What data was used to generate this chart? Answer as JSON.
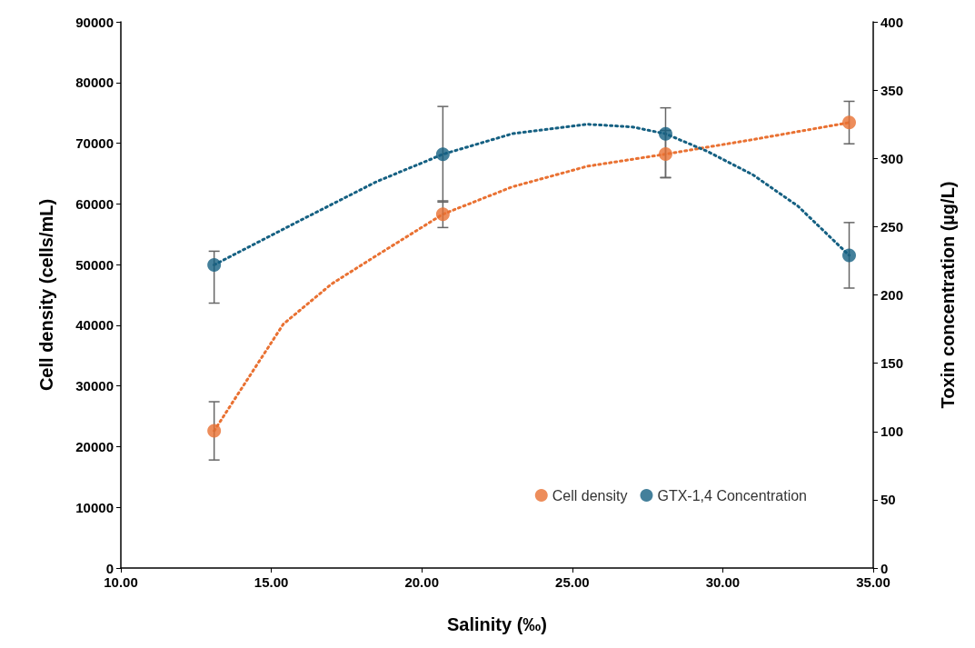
{
  "chart_data": {
    "type": "scatter",
    "xlabel": "Salinity (‰)",
    "ylabel": "Cell density (cells/mL)",
    "y2label": "Toxin concentration (µg/L)",
    "x": [
      13.1,
      20.7,
      28.1,
      34.2
    ],
    "series": [
      {
        "name": "Cell density",
        "color": "#e97132",
        "values": [
          22600,
          58300,
          68200,
          73400
        ],
        "errors": [
          4800,
          2200,
          3900,
          3500
        ]
      },
      {
        "name": "GTX-1,4 Concentration",
        "color": "#156082",
        "axis": "y2",
        "values": [
          222,
          303,
          318,
          229
        ],
        "errors": [
          [
            194,
            232
          ],
          35,
          [
            286,
            337
          ],
          24
        ]
      },
      {
        "type": "line",
        "color": "#e97132",
        "line_style": "dotted",
        "marker": "none",
        "x": [
          13.1,
          14,
          15.4,
          17,
          18.5,
          20.7,
          23,
          25.5,
          28.1,
          31,
          34.2
        ],
        "values": [
          22600,
          29500,
          40200,
          46800,
          51500,
          58300,
          62800,
          66200,
          68200,
          70600,
          73400
        ]
      },
      {
        "type": "line",
        "color": "#156082",
        "line_style": "dotted",
        "marker": "none",
        "axis": "y2",
        "x": [
          13.1,
          16,
          18.5,
          20.7,
          23,
          25.5,
          27,
          28.1,
          29.5,
          31,
          32.5,
          34.2
        ],
        "values": [
          222,
          255,
          283,
          303,
          318,
          325,
          323,
          318,
          305,
          288,
          265,
          229
        ]
      }
    ],
    "xlim": [
      10,
      35
    ],
    "xticks": [
      {
        "value": 10,
        "label": "10.00"
      },
      {
        "value": 15,
        "label": "15.00"
      },
      {
        "value": 20,
        "label": "20.00"
      },
      {
        "value": 25,
        "label": "25.00"
      },
      {
        "value": 30,
        "label": "30.00"
      },
      {
        "value": 35,
        "label": "35.00"
      }
    ],
    "ylim": [
      0,
      90000
    ],
    "yticks": [
      0,
      10000,
      20000,
      30000,
      40000,
      50000,
      60000,
      70000,
      80000,
      90000
    ],
    "y2lim": [
      0,
      400
    ],
    "y2ticks": [
      0,
      50,
      100,
      150,
      200,
      250,
      300,
      350,
      400
    ],
    "marker": "circle",
    "grid": false,
    "legend": "bottom right"
  }
}
